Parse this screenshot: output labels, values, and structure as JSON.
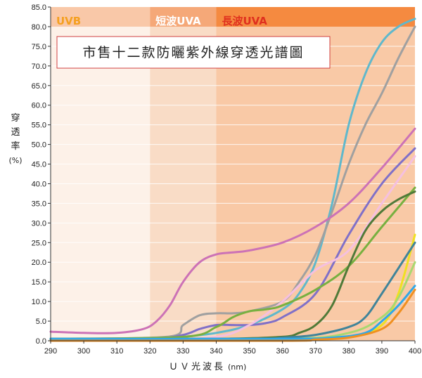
{
  "chart_data": {
    "type": "line",
    "title": "市售十二款防曬紫外線穿透光譜圖",
    "xlabel": "ＵＶ光波長",
    "xunit": "(nm)",
    "ylabel_chars": [
      "穿",
      "透",
      "率"
    ],
    "yunit": "(%)",
    "xlim": [
      290,
      400
    ],
    "ylim": [
      0,
      85
    ],
    "xticks": [
      "290",
      "300",
      "310",
      "320",
      "330",
      "340",
      "350",
      "360",
      "370",
      "380",
      "390",
      "400"
    ],
    "yticks": [
      "0.0",
      "5.0",
      "10.0",
      "15.0",
      "20.0",
      "25.0",
      "30.0",
      "35.0",
      "40.0",
      "45.0",
      "50.0",
      "55.0",
      "60.0",
      "65.0",
      "70.0",
      "75.0",
      "80.0",
      "85.0"
    ],
    "bands": [
      {
        "label": "UVB",
        "from": 290,
        "to": 320,
        "color": "#fdf1e8",
        "header_color": "#f9c8a8",
        "label_color": "#f5a020"
      },
      {
        "label": "短波UVA",
        "from": 320,
        "to": 340,
        "color": "#f9dcc6",
        "header_color": "#f5a878",
        "label_color": "#ffffff"
      },
      {
        "label": "長波UVA",
        "from": 340,
        "to": 400,
        "color": "#f9c9a6",
        "header_color": "#f58a40",
        "label_color": "#e0301e"
      }
    ],
    "grid": "horizontal",
    "series": [
      {
        "color": "#5fb8cc",
        "points": [
          [
            290,
            0.5
          ],
          [
            320,
            0.5
          ],
          [
            330,
            1
          ],
          [
            340,
            2
          ],
          [
            350,
            4
          ],
          [
            360,
            8
          ],
          [
            365,
            12
          ],
          [
            370,
            20
          ],
          [
            375,
            35
          ],
          [
            380,
            55
          ],
          [
            385,
            68
          ],
          [
            390,
            76
          ],
          [
            395,
            80
          ],
          [
            400,
            82
          ]
        ]
      },
      {
        "color": "#a0a0a0",
        "points": [
          [
            290,
            0.5
          ],
          [
            325,
            1
          ],
          [
            330,
            4
          ],
          [
            335,
            6.5
          ],
          [
            340,
            7
          ],
          [
            345,
            7
          ],
          [
            350,
            7.5
          ],
          [
            360,
            10
          ],
          [
            365,
            15
          ],
          [
            370,
            22
          ],
          [
            375,
            33
          ],
          [
            380,
            45
          ],
          [
            385,
            55
          ],
          [
            390,
            63
          ],
          [
            395,
            72
          ],
          [
            400,
            80
          ]
        ]
      },
      {
        "color": "#cc72b6",
        "points": [
          [
            290,
            2.3
          ],
          [
            300,
            2
          ],
          [
            310,
            2
          ],
          [
            318,
            3
          ],
          [
            322,
            5
          ],
          [
            326,
            9
          ],
          [
            330,
            15
          ],
          [
            335,
            20
          ],
          [
            340,
            22
          ],
          [
            345,
            22.5
          ],
          [
            350,
            23
          ],
          [
            360,
            25
          ],
          [
            370,
            29
          ],
          [
            380,
            35
          ],
          [
            390,
            44
          ],
          [
            400,
            54
          ]
        ]
      },
      {
        "color": "#8070c8",
        "points": [
          [
            290,
            0.5
          ],
          [
            320,
            0.5
          ],
          [
            330,
            1.5
          ],
          [
            335,
            3
          ],
          [
            340,
            4
          ],
          [
            345,
            4
          ],
          [
            350,
            4
          ],
          [
            355,
            4.5
          ],
          [
            360,
            6
          ],
          [
            370,
            12
          ],
          [
            380,
            27
          ],
          [
            390,
            40
          ],
          [
            400,
            49
          ]
        ]
      },
      {
        "color": "#f5c0e0",
        "points": [
          [
            290,
            0.5
          ],
          [
            320,
            0.5
          ],
          [
            340,
            1
          ],
          [
            350,
            4
          ],
          [
            360,
            10
          ],
          [
            370,
            18
          ],
          [
            380,
            23
          ],
          [
            390,
            35
          ],
          [
            400,
            47
          ]
        ]
      },
      {
        "color": "#78b040",
        "points": [
          [
            290,
            0.5
          ],
          [
            330,
            1
          ],
          [
            340,
            3.5
          ],
          [
            345,
            6
          ],
          [
            350,
            7.5
          ],
          [
            355,
            8
          ],
          [
            360,
            9
          ],
          [
            370,
            13
          ],
          [
            380,
            19
          ],
          [
            390,
            29
          ],
          [
            400,
            39
          ]
        ]
      },
      {
        "color": "#507a38",
        "points": [
          [
            290,
            0.3
          ],
          [
            340,
            0.5
          ],
          [
            360,
            1
          ],
          [
            365,
            2
          ],
          [
            370,
            4
          ],
          [
            375,
            9
          ],
          [
            380,
            19
          ],
          [
            385,
            28
          ],
          [
            390,
            33
          ],
          [
            395,
            36
          ],
          [
            400,
            38
          ]
        ]
      },
      {
        "color": "#f0e020",
        "points": [
          [
            290,
            0.5
          ],
          [
            360,
            0.5
          ],
          [
            380,
            1
          ],
          [
            390,
            4
          ],
          [
            395,
            12
          ],
          [
            400,
            27
          ]
        ]
      },
      {
        "color": "#a8d870",
        "points": [
          [
            290,
            0.5
          ],
          [
            360,
            0.5
          ],
          [
            380,
            2
          ],
          [
            390,
            6
          ],
          [
            395,
            11
          ],
          [
            400,
            20
          ]
        ]
      },
      {
        "color": "#40849a",
        "points": [
          [
            290,
            0.5
          ],
          [
            350,
            0.5
          ],
          [
            360,
            0.8
          ],
          [
            370,
            1.5
          ],
          [
            380,
            3.5
          ],
          [
            385,
            6
          ],
          [
            390,
            12
          ],
          [
            400,
            25
          ]
        ]
      },
      {
        "color": "#30a8e8",
        "points": [
          [
            290,
            0.5
          ],
          [
            360,
            0.5
          ],
          [
            375,
            0.8
          ],
          [
            385,
            2
          ],
          [
            390,
            5
          ],
          [
            395,
            9
          ],
          [
            400,
            14
          ]
        ]
      },
      {
        "color": "#f09020",
        "points": [
          [
            290,
            0
          ],
          [
            360,
            0
          ],
          [
            370,
            0.3
          ],
          [
            380,
            0.8
          ],
          [
            390,
            3
          ],
          [
            395,
            7
          ],
          [
            400,
            13
          ]
        ]
      }
    ]
  }
}
